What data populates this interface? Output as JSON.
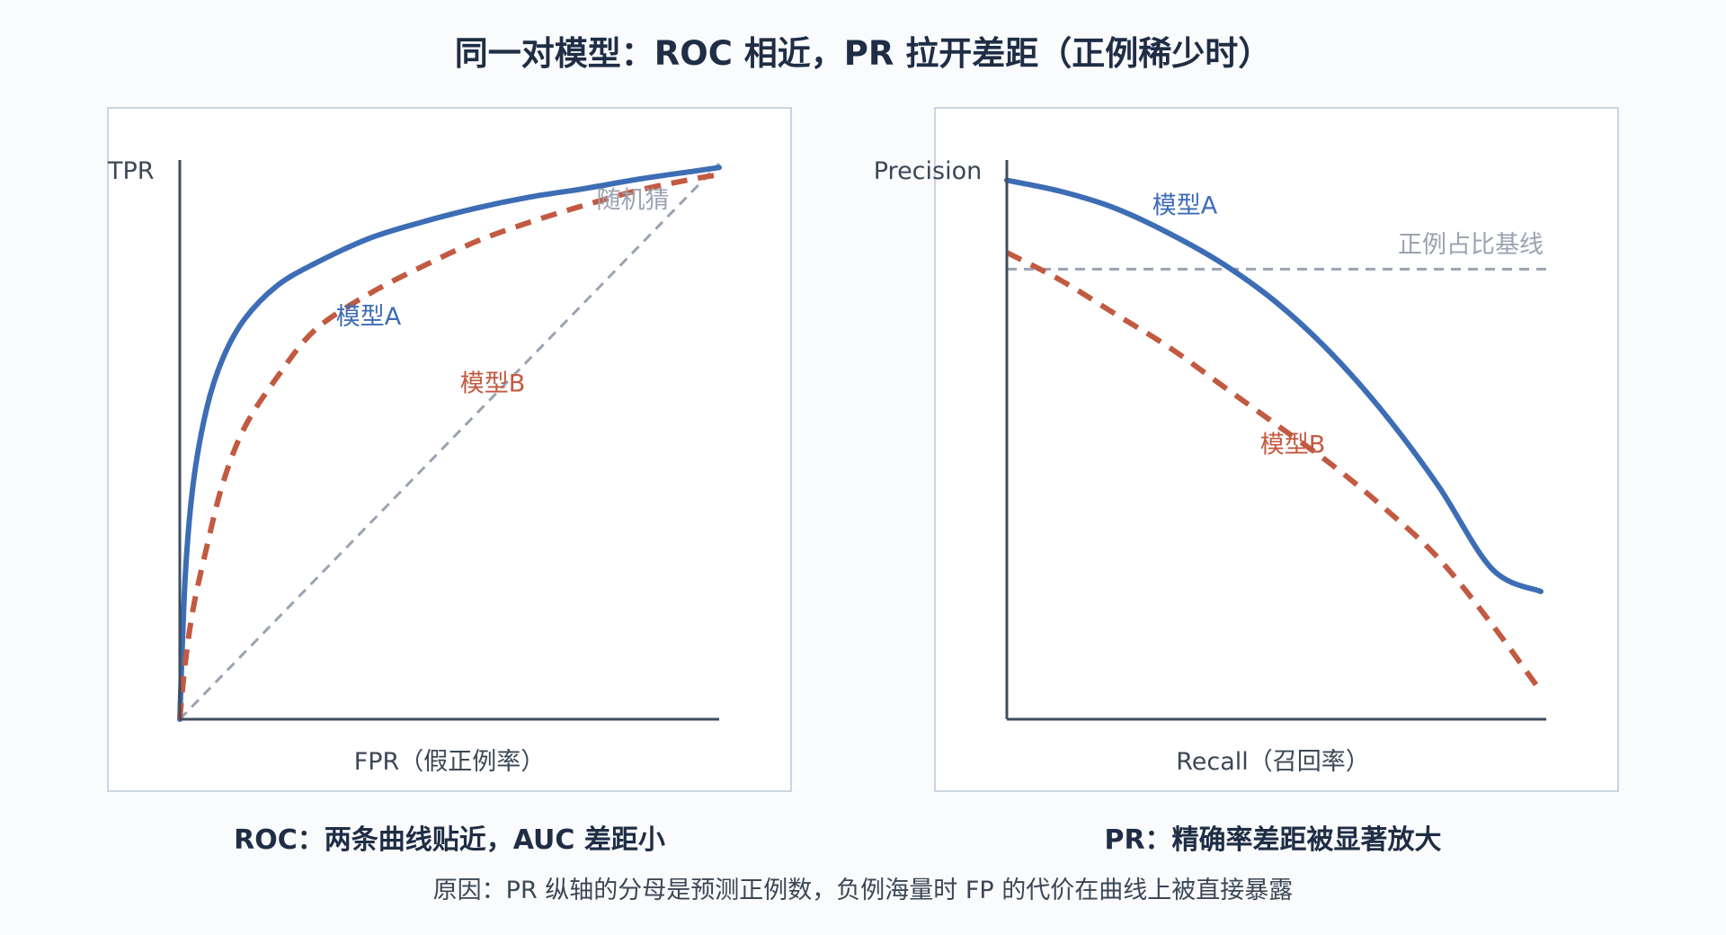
{
  "page": {
    "title": "同一对模型：ROC 相近，PR 拉开差距（正例稀少时）",
    "footnote": "原因：PR 纵轴的分母是预测正例数，负例海量时 FP 的代价在曲线上被直接暴露"
  },
  "colors": {
    "model_a": "#3d6db5",
    "model_b": "#c25a41",
    "reference": "#9aa3b2",
    "axis": "#3f4d5e",
    "panel_border": "#b9c7d9"
  },
  "chart_data": [
    {
      "type": "line",
      "name": "ROC",
      "caption": "ROC：两条曲线贴近，AUC 差距小",
      "xlabel": "FPR（假正例率）",
      "ylabel": "TPR",
      "xlim": [
        0,
        1
      ],
      "ylim": [
        0,
        1
      ],
      "grid": false,
      "series": [
        {
          "name": "模型A",
          "style": "solid",
          "x": [
            0,
            0.01,
            0.025,
            0.05,
            0.08,
            0.12,
            0.18,
            0.25,
            0.35,
            0.45,
            0.55,
            0.65,
            0.75,
            0.85,
            0.95,
            1.0
          ],
          "y": [
            0,
            0.255,
            0.425,
            0.56,
            0.65,
            0.72,
            0.78,
            0.82,
            0.865,
            0.895,
            0.92,
            0.94,
            0.955,
            0.972,
            0.986,
            0.993
          ]
        },
        {
          "name": "模型B",
          "style": "dashed",
          "x": [
            0,
            0.01,
            0.025,
            0.05,
            0.08,
            0.12,
            0.18,
            0.25,
            0.35,
            0.45,
            0.55,
            0.65,
            0.75,
            0.85,
            0.95,
            1.0
          ],
          "y": [
            0,
            0.1,
            0.2,
            0.31,
            0.425,
            0.525,
            0.615,
            0.7,
            0.765,
            0.815,
            0.86,
            0.895,
            0.925,
            0.952,
            0.972,
            0.98
          ]
        },
        {
          "name": "随机猜",
          "style": "reference",
          "x": [
            0,
            1
          ],
          "y": [
            0,
            1
          ]
        }
      ],
      "annotations": [
        {
          "text": "模型A",
          "series": "模型A",
          "x": 0.35,
          "y": 0.71
        },
        {
          "text": "模型B",
          "series": "模型B",
          "x": 0.58,
          "y": 0.59
        },
        {
          "text": "随机猜",
          "series": "随机猜",
          "x": 0.84,
          "y": 0.92
        }
      ]
    },
    {
      "type": "line",
      "name": "PR",
      "caption": "PR：精确率差距被显著放大",
      "xlabel": "Recall（召回率）",
      "ylabel": "Precision",
      "xlim": [
        0,
        1
      ],
      "ylim": [
        0,
        1
      ],
      "grid": false,
      "series": [
        {
          "name": "模型A",
          "style": "solid",
          "x": [
            0,
            0.1,
            0.2,
            0.3,
            0.4,
            0.5,
            0.6,
            0.7,
            0.8,
            0.9,
            0.99
          ],
          "y": [
            0.97,
            0.95,
            0.92,
            0.875,
            0.82,
            0.75,
            0.66,
            0.55,
            0.42,
            0.27,
            0.23
          ]
        },
        {
          "name": "模型B",
          "style": "dashed",
          "x": [
            0,
            0.1,
            0.2,
            0.3,
            0.4,
            0.5,
            0.6,
            0.7,
            0.8,
            0.9,
            0.99
          ],
          "y": [
            0.84,
            0.79,
            0.73,
            0.67,
            0.6,
            0.53,
            0.46,
            0.38,
            0.29,
            0.17,
            0.05
          ]
        },
        {
          "name": "正例占比基线",
          "style": "reference",
          "x": [
            0,
            1
          ],
          "y": [
            0.81,
            0.81
          ]
        }
      ],
      "annotations": [
        {
          "text": "模型A",
          "series": "模型A",
          "x": 0.33,
          "y": 0.91
        },
        {
          "text": "模型B",
          "series": "模型B",
          "x": 0.53,
          "y": 0.48
        },
        {
          "text": "正例占比基线",
          "series": "正例占比基线",
          "x": 0.86,
          "y": 0.84
        }
      ]
    }
  ]
}
